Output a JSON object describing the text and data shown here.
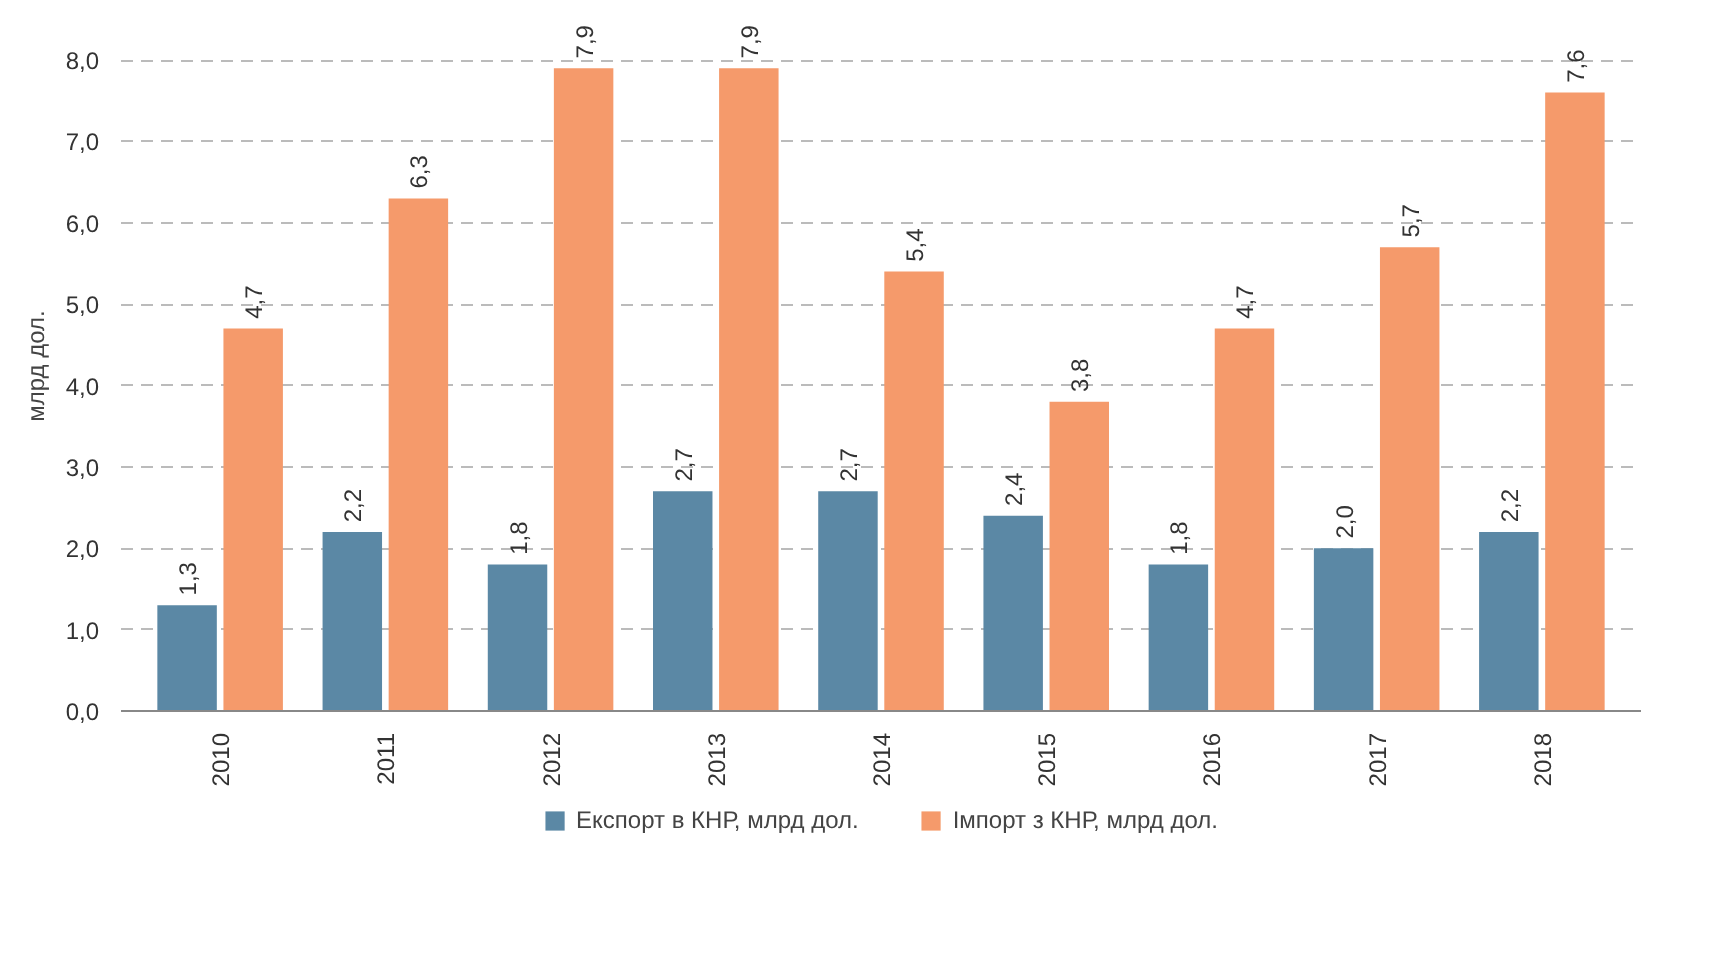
{
  "chart_data": {
    "type": "bar",
    "ylabel": "млрд дол.",
    "categories": [
      "2010",
      "2011",
      "2012",
      "2013",
      "2014",
      "2015",
      "2016",
      "2017",
      "2018"
    ],
    "series": [
      {
        "name": "Експорт в КНР, млрд дол.",
        "color": "#5b88a5",
        "values": [
          1.3,
          2.2,
          1.8,
          2.7,
          2.7,
          2.4,
          1.8,
          2.0,
          2.2
        ],
        "value_labels": [
          "1,3",
          "2,2",
          "1,8",
          "2,7",
          "2,7",
          "2,4",
          "1,8",
          "2,0",
          "2,2"
        ]
      },
      {
        "name": "Імпорт з КНР, млрд дол.",
        "color": "#f59a6b",
        "values": [
          4.7,
          6.3,
          7.9,
          7.9,
          5.4,
          3.8,
          4.7,
          5.7,
          7.6
        ],
        "value_labels": [
          "4,7",
          "6,3",
          "7,9",
          "7,9",
          "5,4",
          "3,8",
          "4,7",
          "5,7",
          "7,6"
        ]
      }
    ],
    "ylim": [
      0,
      8
    ],
    "yticks": [
      {
        "value": 0,
        "label": "0,0"
      },
      {
        "value": 1,
        "label": "1,0"
      },
      {
        "value": 2,
        "label": "2,0"
      },
      {
        "value": 3,
        "label": "3,0"
      },
      {
        "value": 4,
        "label": "4,0"
      },
      {
        "value": 5,
        "label": "5,0"
      },
      {
        "value": 6,
        "label": "6,0"
      },
      {
        "value": 7,
        "label": "7,0"
      },
      {
        "value": 8,
        "label": "8,0"
      }
    ],
    "grid": "y",
    "legend": "bottom"
  }
}
